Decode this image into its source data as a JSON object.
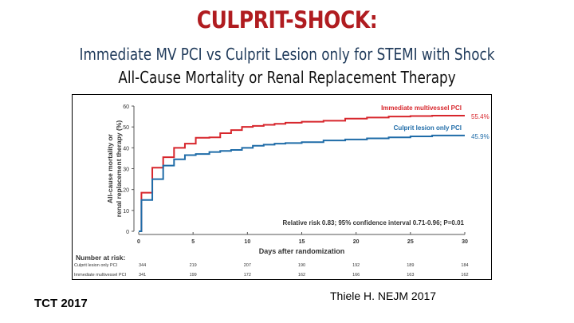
{
  "slide": {
    "title": "CULPRIT-SHOCK:",
    "subtitle": "Immediate MV PCI vs Culprit Lesion only for STEMI with Shock",
    "subtitle2": "All-Cause Mortality or Renal Replacement Therapy",
    "footer_left": "TCT 2017",
    "footer_right": "Thiele H. NEJM 2017"
  },
  "colors": {
    "title": "#b01c20",
    "red_series": "#d7262c",
    "blue_series": "#1f6ca8"
  },
  "chart_data": {
    "type": "line",
    "subtype": "kaplan-meier-step",
    "title": "",
    "xlabel": "Days after randomization",
    "ylabel": "All-cause mortality or renal replacement therapy (%)",
    "xlim": [
      0,
      30
    ],
    "ylim": [
      0,
      60
    ],
    "xticks": [
      0,
      5,
      10,
      15,
      20,
      25,
      30
    ],
    "yticks": [
      0,
      10,
      20,
      30,
      40,
      50,
      60
    ],
    "grid": false,
    "series": [
      {
        "name": "Immediate multivessel PCI",
        "color": "#d7262c",
        "end_label": "55.4%",
        "x": [
          0,
          0.25,
          1.25,
          2.25,
          3.25,
          4.25,
          5.25,
          6.5,
          7.5,
          8.5,
          9.5,
          10.5,
          11.5,
          12.5,
          13.5,
          15,
          17,
          19,
          21,
          23,
          25,
          27,
          30
        ],
        "y": [
          0,
          18.5,
          30.5,
          35.5,
          40,
          42,
          44.8,
          45,
          47,
          48.5,
          50,
          50.5,
          51,
          51.5,
          52,
          52.5,
          53,
          54,
          54.5,
          55,
          55.2,
          55.4,
          55.4
        ]
      },
      {
        "name": "Culprit lesion only PCI",
        "color": "#1f6ca8",
        "end_label": "45.9%",
        "x": [
          0,
          0.25,
          1.25,
          2.25,
          3.25,
          4.25,
          5.25,
          6.5,
          7.5,
          8.5,
          9.5,
          10.5,
          11.5,
          12.5,
          13.5,
          15,
          17,
          19,
          21,
          23,
          25,
          27,
          30
        ],
        "y": [
          0,
          15,
          25,
          31.5,
          34.5,
          36.5,
          37,
          38,
          38.5,
          39,
          40,
          41,
          41.5,
          42,
          42.3,
          42.7,
          43.5,
          44,
          44.5,
          45,
          45.5,
          45.9,
          45.9
        ]
      }
    ],
    "annotations": [
      "Relative risk 0.83; 95% confidence interval 0.71-0.96; P=0.01"
    ],
    "legend_position": "inline-right",
    "number_at_risk": {
      "label": "Number at risk:",
      "timepoints": [
        0,
        5,
        10,
        15,
        20,
        25,
        30
      ],
      "rows": [
        {
          "name": "Culprit lesion only PCI",
          "values": [
            344,
            219,
            207,
            190,
            192,
            189,
            184
          ]
        },
        {
          "name": "Immediate multivessel PCI",
          "values": [
            341,
            199,
            172,
            162,
            166,
            163,
            162
          ]
        }
      ]
    }
  }
}
